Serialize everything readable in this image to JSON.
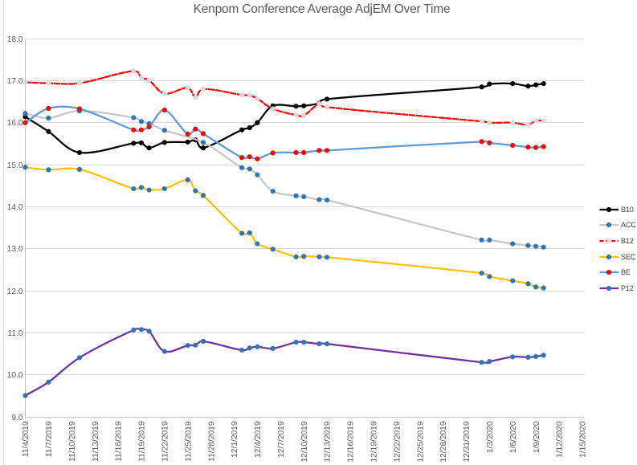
{
  "chart_data": {
    "type": "line",
    "title": "Kenpom Conference Average AdjEM Over Time",
    "xlabel": "",
    "ylabel": "",
    "ylim": [
      9.0,
      18.0
    ],
    "y_tick_step": 1.0,
    "y_tick_labels": [
      "18.0",
      "17.0",
      "16.0",
      "15.0",
      "14.0",
      "13.0",
      "12.0",
      "11.0",
      "10.0",
      "9.0"
    ],
    "x_axis_type": "date",
    "x_tick_labels": [
      "11/4/2019",
      "11/7/2019",
      "11/10/2019",
      "11/13/2019",
      "11/16/2019",
      "11/19/2019",
      "11/22/2019",
      "11/25/2019",
      "11/28/2019",
      "12/1/2019",
      "12/4/2019",
      "12/7/2019",
      "12/10/2019",
      "12/13/2019",
      "12/16/2019",
      "12/19/2019",
      "12/22/2019",
      "12/25/2019",
      "12/28/2019",
      "12/31/2019",
      "1/3/2020",
      "1/6/2020",
      "1/9/2020",
      "1/12/2020",
      "1/15/2020"
    ],
    "grid": true,
    "gridline_color": "#d9d9d9",
    "axis_line_color": "#bfbfbf",
    "axis_label_color": "#595959",
    "legend_position": "right",
    "smooth_lines": true,
    "dates": [
      "11/4/2019",
      "11/7/2019",
      "11/11/2019",
      "11/18/2019",
      "11/19/2019",
      "11/20/2019",
      "11/22/2019",
      "11/25/2019",
      "11/26/2019",
      "11/27/2019",
      "12/2/2019",
      "12/3/2019",
      "12/4/2019",
      "12/6/2019",
      "12/9/2019",
      "12/10/2019",
      "12/12/2019",
      "12/13/2019",
      "1/2/2020",
      "1/3/2020",
      "1/6/2020",
      "1/8/2020",
      "1/9/2020",
      "1/10/2020"
    ],
    "day_offsets": [
      0,
      3,
      7,
      14,
      15,
      16,
      18,
      21,
      22,
      23,
      28,
      29,
      30,
      32,
      35,
      36,
      38,
      39,
      59,
      60,
      63,
      65,
      66,
      67
    ],
    "series": [
      {
        "name": "B10",
        "line_color": "#000000",
        "marker_color": "#000000",
        "dashed": false,
        "values": [
          16.15,
          15.8,
          15.3,
          15.52,
          15.53,
          15.41,
          15.54,
          15.55,
          15.6,
          15.41,
          15.84,
          15.89,
          16.01,
          16.41,
          16.4,
          16.41,
          16.47,
          16.57,
          16.86,
          16.93,
          16.94,
          16.88,
          16.91,
          16.94
        ]
      },
      {
        "name": "ACC",
        "line_color": "#c6c6c6",
        "marker_color": "#2e75b6",
        "dashed": false,
        "values": [
          16.23,
          16.12,
          16.29,
          16.13,
          16.04,
          15.99,
          15.83,
          null,
          null,
          15.54,
          14.94,
          14.91,
          14.77,
          14.38,
          14.27,
          14.25,
          14.18,
          14.17,
          13.22,
          13.22,
          13.13,
          13.09,
          13.07,
          13.05
        ]
      },
      {
        "name": "B12",
        "line_color": "#ff0000",
        "marker_color": "#d9d9d9",
        "dashed": true,
        "values": [
          16.97,
          16.95,
          16.95,
          17.24,
          17.08,
          17.02,
          16.7,
          16.84,
          16.61,
          16.81,
          16.67,
          16.66,
          16.58,
          16.34,
          16.19,
          16.18,
          16.46,
          16.38,
          16.04,
          16.01,
          16.01,
          15.96,
          16.06,
          16.05
        ]
      },
      {
        "name": "SEC",
        "line_color": "#ffc000",
        "marker_color": "#2e75b6",
        "dashed": false,
        "values": [
          14.95,
          14.89,
          14.9,
          14.44,
          14.47,
          14.41,
          14.44,
          14.65,
          14.39,
          14.28,
          13.38,
          13.39,
          13.13,
          13.0,
          12.82,
          12.83,
          12.82,
          12.81,
          12.43,
          12.35,
          12.25,
          12.18,
          12.1,
          12.08
        ]
      },
      {
        "name": "BE",
        "line_color": "#5b9bd5",
        "marker_color": "#ff0000",
        "dashed": false,
        "values": [
          16.01,
          16.35,
          16.34,
          15.84,
          15.84,
          15.91,
          16.31,
          15.74,
          15.86,
          15.75,
          15.18,
          15.2,
          15.15,
          15.29,
          15.3,
          15.3,
          15.35,
          15.35,
          15.56,
          15.53,
          15.47,
          15.43,
          15.42,
          15.44
        ]
      },
      {
        "name": "P12",
        "line_color": "#7030a0",
        "marker_color": "#2e75b6",
        "dashed": false,
        "values": [
          9.52,
          9.84,
          10.42,
          11.08,
          11.09,
          11.05,
          10.57,
          10.71,
          10.72,
          10.81,
          10.6,
          10.65,
          10.68,
          10.64,
          10.79,
          10.79,
          10.75,
          10.75,
          10.31,
          10.33,
          10.44,
          10.43,
          10.45,
          10.48
        ]
      }
    ]
  }
}
